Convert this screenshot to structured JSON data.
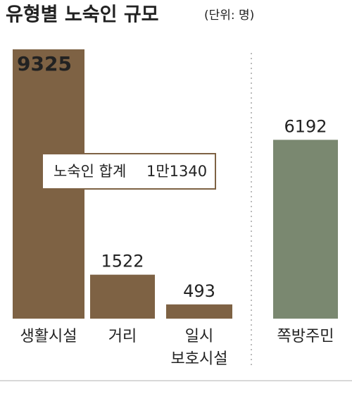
{
  "chart_data": {
    "type": "bar",
    "title": "유형별 노숙인 규모",
    "subtitle": "(단위: 명)",
    "categories": [
      "생활시설",
      "거리",
      "일시 보호시설",
      "쪽방주민"
    ],
    "values": [
      9325,
      1522,
      493,
      6192
    ],
    "colors": [
      "#7e6244",
      "#7e6244",
      "#7e6244",
      "#7a8870"
    ],
    "annotation": {
      "text": "노숙인 합계",
      "total": "1만1340"
    }
  }
}
